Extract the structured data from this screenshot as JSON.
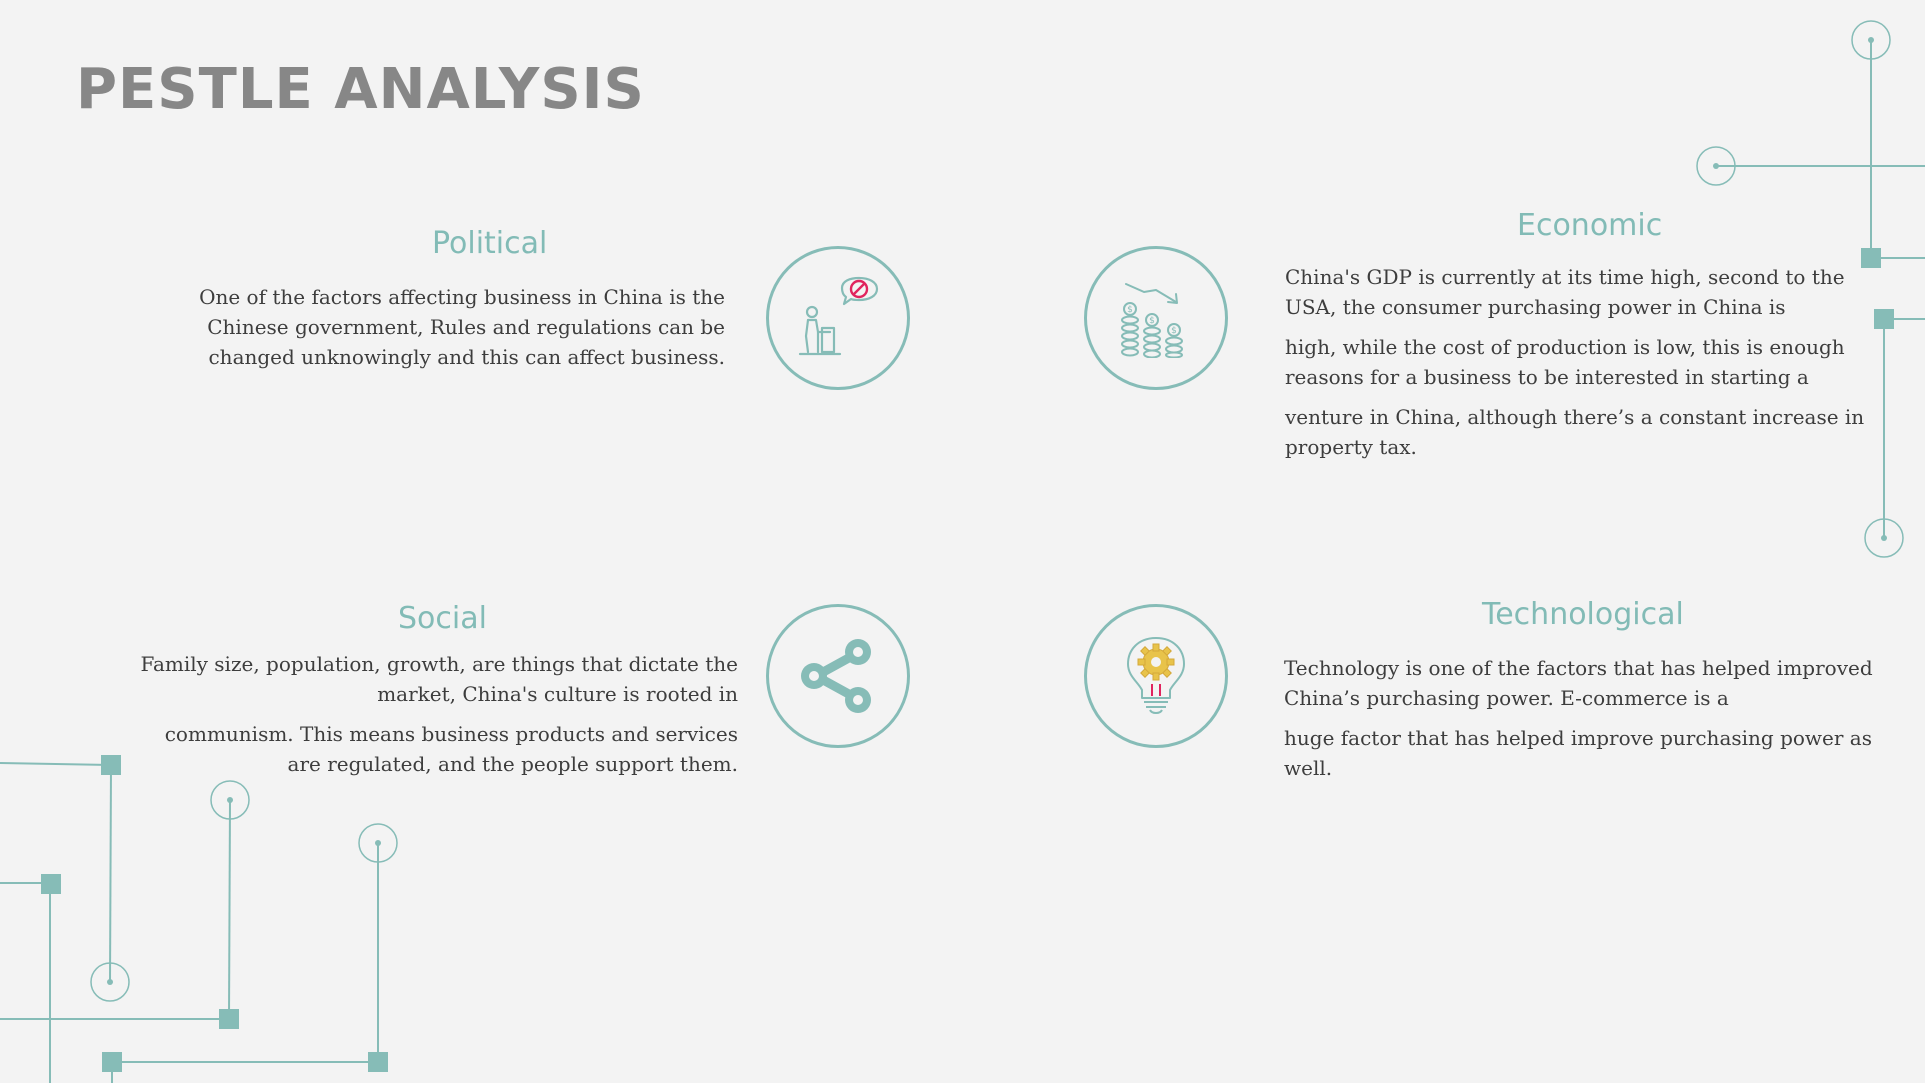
{
  "title": "PESTLE ANALYSIS",
  "colors": {
    "accent": "#86bcb7",
    "text": "#3d3d3d",
    "title": "#878787",
    "background": "#f3f3f3",
    "alert": "#e0245e",
    "gear": "#e8c34a"
  },
  "sections": {
    "political": {
      "heading": "Political",
      "text": "One of the factors affecting business in China is the Chinese government, Rules and regulations can be changed unknowingly and this can affect business.",
      "icon": "speaker-no-icon"
    },
    "economic": {
      "heading": "Economic",
      "text_1": "China's GDP is currently at its time high, second to the USA, the consumer purchasing power in China is",
      "text_2": "high, while the cost of production is low, this is enough reasons for a business to be interested in starting a",
      "text_3": "venture in China, although there’s a constant increase in property tax.",
      "icon": "coins-decline-icon"
    },
    "social": {
      "heading": "Social",
      "text_1": "Family size, population, growth, are things that dictate the market, China's culture is rooted in",
      "text_2": "communism. This means business products and services are regulated, and the people support them.",
      "icon": "share-icon"
    },
    "technological": {
      "heading": "Technological",
      "text_1": "Technology is one of the factors that has helped improved China’s purchasing power. E-commerce is a",
      "text_2": "huge factor that has helped improve purchasing power as well.",
      "icon": "lightbulb-gear-icon"
    }
  }
}
